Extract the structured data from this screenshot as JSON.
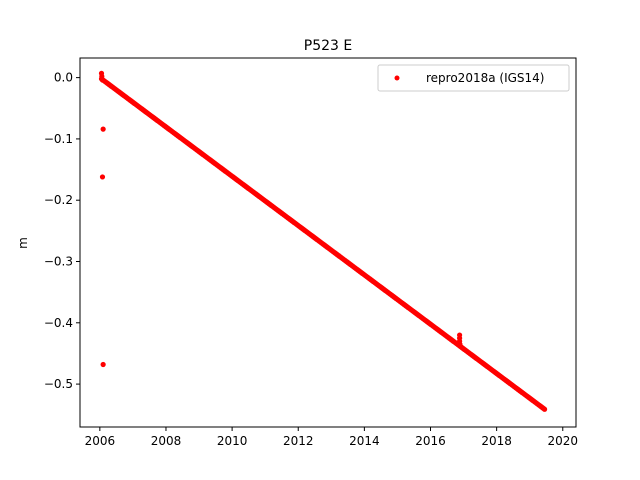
{
  "chart_data": {
    "type": "scatter",
    "title": "P523 E",
    "xlabel": "",
    "ylabel": "m",
    "xlim": [
      2005.4,
      2020.4
    ],
    "ylim": [
      -0.57,
      0.032
    ],
    "x_ticks": [
      2006,
      2008,
      2010,
      2012,
      2014,
      2016,
      2018,
      2020
    ],
    "x_tick_labels": [
      "2006",
      "2008",
      "2010",
      "2012",
      "2014",
      "2016",
      "2018",
      "2020"
    ],
    "y_ticks": [
      0.0,
      -0.1,
      -0.2,
      -0.3,
      -0.4,
      -0.5
    ],
    "y_tick_labels": [
      "0.0",
      "−0.1",
      "−0.2",
      "−0.3",
      "−0.4",
      "−0.5"
    ],
    "grid": false,
    "legend_position": "top-right",
    "series": [
      {
        "name": "repro2018a (IGS14)",
        "color": "#ff0000",
        "marker": "circle",
        "trend": {
          "x_start": 2006.05,
          "x_end": 2019.45,
          "y_start": -0.002,
          "y_end": -0.541,
          "sample_step_years": 0.03
        },
        "points": [
          {
            "x": 2006.05,
            "y": 0.007
          },
          {
            "x": 2006.06,
            "y": 0.002
          },
          {
            "x": 2006.08,
            "y": -0.004
          },
          {
            "x": 2006.1,
            "y": -0.084
          },
          {
            "x": 2006.08,
            "y": -0.162
          },
          {
            "x": 2006.1,
            "y": -0.468
          },
          {
            "x": 2016.88,
            "y": -0.42
          },
          {
            "x": 2016.88,
            "y": -0.425
          },
          {
            "x": 2016.88,
            "y": -0.43
          },
          {
            "x": 2016.89,
            "y": -0.435
          }
        ]
      }
    ]
  }
}
